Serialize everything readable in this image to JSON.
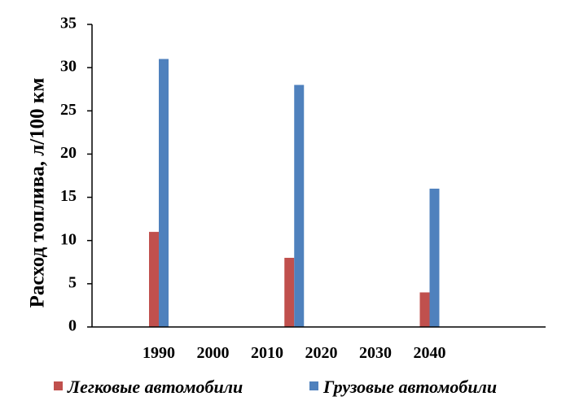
{
  "chart_data": {
    "type": "bar",
    "categories": [
      "1990",
      "2000",
      "2010",
      "2020",
      "2030",
      "2040"
    ],
    "series": [
      {
        "name": "Легковые автомобили",
        "color": "#C0504D",
        "points": [
          {
            "x": 1990,
            "y": 11
          },
          {
            "x": 2015,
            "y": 8
          },
          {
            "x": 2040,
            "y": 4
          }
        ]
      },
      {
        "name": "Грузовые автомобили",
        "color": "#4F81BD",
        "points": [
          {
            "x": 1990,
            "y": 31
          },
          {
            "x": 2015,
            "y": 28
          },
          {
            "x": 2040,
            "y": 16
          }
        ]
      }
    ],
    "ylabel": "Расход топлива, л/100 км",
    "xlabel": "",
    "ylim": [
      0,
      35
    ],
    "yticks": [
      0,
      5,
      10,
      15,
      20,
      25,
      30,
      35
    ],
    "grid": false,
    "legend_position": "bottom"
  }
}
